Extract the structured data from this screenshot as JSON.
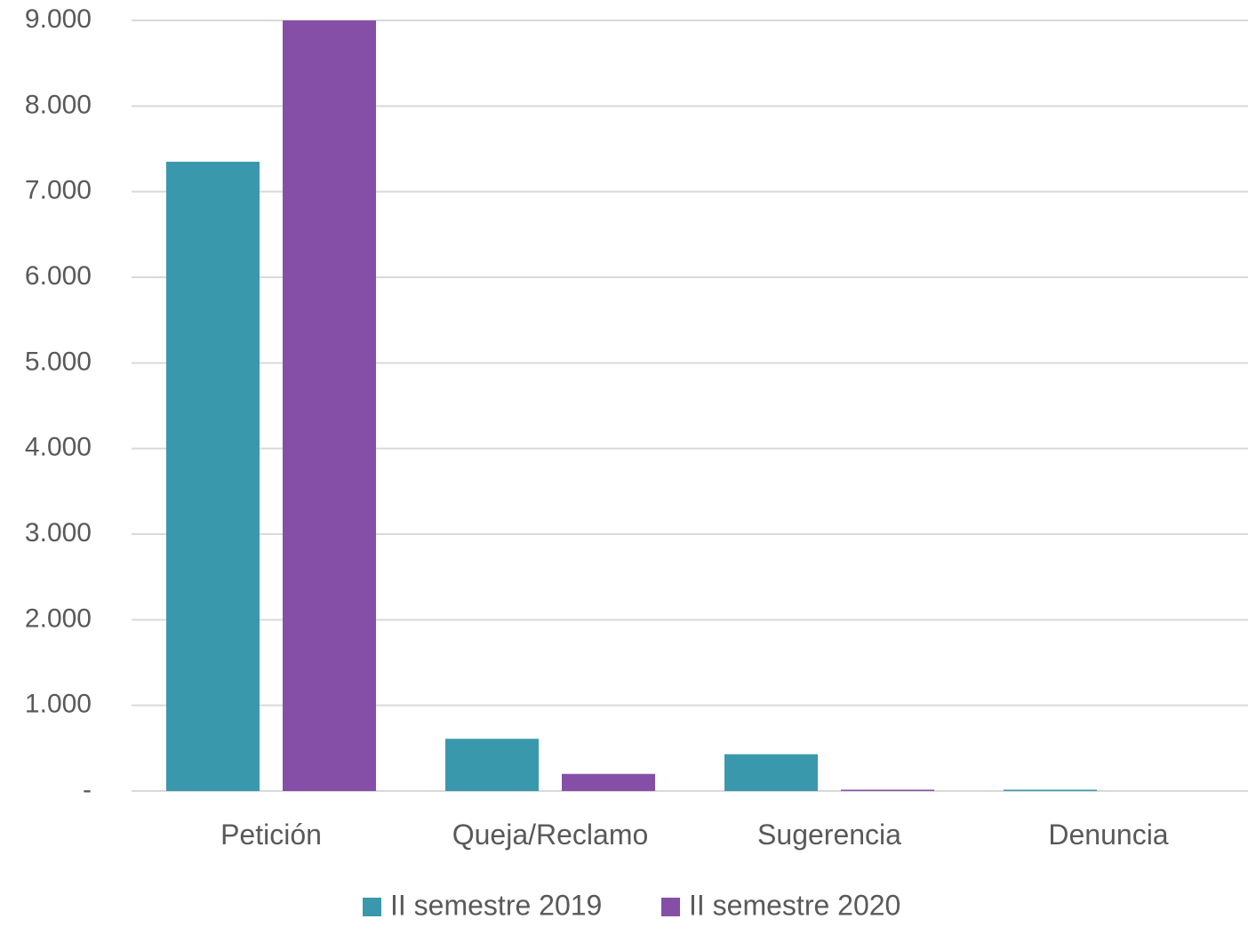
{
  "chart_data": {
    "type": "bar",
    "title": "",
    "xlabel": "",
    "ylabel": "",
    "categories": [
      "Petición",
      "Queja/Reclamo",
      "Sugerencia",
      "Denuncia"
    ],
    "series": [
      {
        "name": "II semestre 2019",
        "color": "#3a98ad",
        "values": [
          7350,
          610,
          430,
          8
        ]
      },
      {
        "name": "II semestre 2020",
        "color": "#854fa8",
        "values": [
          9000,
          200,
          15,
          0
        ]
      }
    ],
    "ylim": [
      0,
      9000
    ],
    "yticks": [
      0,
      1000,
      2000,
      3000,
      4000,
      5000,
      6000,
      7000,
      8000,
      9000
    ],
    "ytick_labels": [
      "-",
      "1.000",
      "2.000",
      "3.000",
      "4.000",
      "5.000",
      "6.000",
      "7.000",
      "8.000",
      "9.000"
    ],
    "grid": true,
    "legend_position": "bottom"
  }
}
